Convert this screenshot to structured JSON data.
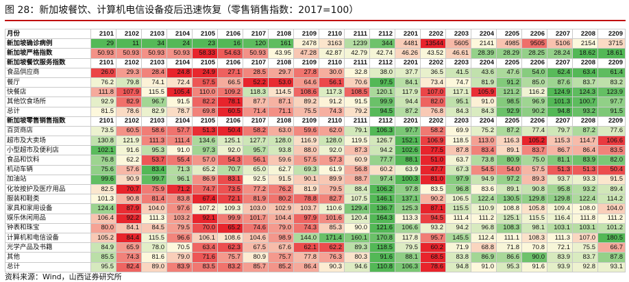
{
  "title": "图 28：新加坡餐饮、计算机电信设备疫后迅速恢复（零售销售指数：2017=100）",
  "source": "资料来源：Wind，山西证券研究所",
  "columns": [
    "月份",
    "2101",
    "2102",
    "2103",
    "2104",
    "2105",
    "2106",
    "2107",
    "2108",
    "2109",
    "2110",
    "2111",
    "2112",
    "2201",
    "2202",
    "2203",
    "2204",
    "2205",
    "2206",
    "2207",
    "2208",
    "2209"
  ],
  "rows": [
    {
      "type": "data",
      "label": "新加坡确诊病例",
      "bold": true,
      "values": [
        "29",
        "11",
        "34",
        "24",
        "23",
        "16",
        "120",
        "161",
        "2478",
        "3163",
        "1239",
        "344",
        "4481",
        "13544",
        "5605",
        "2141",
        "4985",
        "9505",
        "5106",
        "2154",
        "3715"
      ]
    },
    {
      "type": "data",
      "label": "新加坡严格指数",
      "bold": true,
      "values": [
        "50.93",
        "50.93",
        "50.93",
        "50.93",
        "58.33",
        "54.63",
        "50.93",
        "43.95",
        "47.28",
        "42.87",
        "42.79",
        "42.74",
        "46.26",
        "43.52",
        "46.61",
        "28.39",
        "28.29",
        "28.25",
        "28.24",
        "18.62",
        "18.61"
      ]
    },
    {
      "type": "header",
      "label": "新加坡餐饮服务指数",
      "values": [
        "2101",
        "2102",
        "2103",
        "2104",
        "2105",
        "2106",
        "2107",
        "2108",
        "2109",
        "2110",
        "2111",
        "2112",
        "2201",
        "2202",
        "2203",
        "2204",
        "2205",
        "2206",
        "2207",
        "2208",
        "2209"
      ]
    },
    {
      "type": "data",
      "label": "食品供应商",
      "values": [
        "26.0",
        "29.3",
        "28.4",
        "24.8",
        "24.9",
        "27.1",
        "28.5",
        "29.7",
        "27.8",
        "30.0",
        "32.8",
        "38.0",
        "37.7",
        "36.5",
        "41.5",
        "43.6",
        "47.6",
        "54.0",
        "62.4",
        "63.4",
        "61.4"
      ]
    },
    {
      "type": "data",
      "label": "餐厅",
      "values": [
        "76.2",
        "79.8",
        "74.1",
        "72.4",
        "57.5",
        "66.5",
        "52.2",
        "53.0",
        "64.6",
        "56.1",
        "70.6",
        "97.5",
        "84.1",
        "73.4",
        "74.7",
        "81.9",
        "91.2",
        "85.0",
        "87.6",
        "83.7",
        "83.2"
      ]
    },
    {
      "type": "data",
      "label": "快餐店",
      "values": [
        "111.8",
        "107.9",
        "115.5",
        "105.4",
        "110.0",
        "109.2",
        "118.3",
        "114.5",
        "108.6",
        "117.3",
        "108.5",
        "120.1",
        "117.9",
        "107.0",
        "117.1",
        "105.9",
        "121.2",
        "116.2",
        "124.9",
        "124.3",
        "123.9"
      ]
    },
    {
      "type": "data",
      "label": "其他饮食场所",
      "values": [
        "92.9",
        "82.9",
        "96.7",
        "91.5",
        "82.2",
        "78.1",
        "87.7",
        "87.1",
        "89.2",
        "91.2",
        "91.5",
        "99.9",
        "94.4",
        "82.0",
        "95.1",
        "91.0",
        "98.5",
        "96.9",
        "101.3",
        "100.7",
        "97.7"
      ]
    },
    {
      "type": "data",
      "label": "总计",
      "values": [
        "81.5",
        "78.6",
        "82.9",
        "78.7",
        "69.8",
        "60.5",
        "71.4",
        "71.1",
        "75.5",
        "74.3",
        "79.2",
        "94.5",
        "87.2",
        "76.8",
        "84.3",
        "84.3",
        "92.9",
        "90.2",
        "94.8",
        "93.2",
        "91.5"
      ]
    },
    {
      "type": "header",
      "label": "新加坡零售销售指数",
      "values": [
        "2101",
        "2102",
        "2103",
        "2104",
        "2105",
        "2106",
        "2107",
        "2108",
        "2109",
        "2110",
        "2111",
        "2112",
        "2201",
        "2202",
        "2203",
        "2204",
        "2205",
        "2206",
        "2207",
        "2208",
        "2209"
      ]
    },
    {
      "type": "data",
      "label": "百货商店",
      "values": [
        "73.5",
        "60.5",
        "58.6",
        "57.7",
        "51.3",
        "50.4",
        "58.2",
        "63.0",
        "59.6",
        "62.0",
        "79.1",
        "106.3",
        "97.7",
        "58.2",
        "69.9",
        "75.2",
        "87.2",
        "77.4",
        "79.7",
        "87.2",
        "77.6"
      ]
    },
    {
      "type": "data",
      "label": "超市及大卖场",
      "values": [
        "130.8",
        "121.9",
        "111.3",
        "111.4",
        "134.6",
        "125.1",
        "127.7",
        "128.0",
        "116.9",
        "128.0",
        "119.5",
        "126.7",
        "152.1",
        "106.9",
        "118.5",
        "113.0",
        "116.3",
        "105.2",
        "115.3",
        "114.7",
        "106.6"
      ]
    },
    {
      "type": "data",
      "label": "小型超市及便利店",
      "values": [
        "102.1",
        "91.6",
        "95.3",
        "91.0",
        "97.3",
        "92.0",
        "95.7",
        "93.8",
        "88.0",
        "92.0",
        "87.3",
        "94.2",
        "102.6",
        "77.5",
        "87.8",
        "83.4",
        "89.1",
        "83.7",
        "86.7",
        "86.4",
        "83.5"
      ]
    },
    {
      "type": "data",
      "label": "食品和饮料",
      "values": [
        "76.8",
        "62.2",
        "53.7",
        "55.4",
        "57.0",
        "54.3",
        "56.1",
        "59.6",
        "57.5",
        "57.3",
        "60.9",
        "77.7",
        "88.1",
        "51.0",
        "63.7",
        "73.8",
        "80.9",
        "75.0",
        "81.1",
        "83.9",
        "82.0"
      ]
    },
    {
      "type": "data",
      "label": "机动车辆",
      "values": [
        "75.6",
        "57.6",
        "83.4",
        "71.3",
        "65.2",
        "70.7",
        "65.0",
        "62.7",
        "69.3",
        "61.9",
        "56.8",
        "60.2",
        "63.9",
        "47.7",
        "67.3",
        "54.5",
        "54.0",
        "57.5",
        "51.3",
        "51.3",
        "50.4"
      ]
    },
    {
      "type": "data",
      "label": "加油站",
      "values": [
        "99.6",
        "90.9",
        "99.7",
        "96.1",
        "86.9",
        "83.1",
        "92.5",
        "91.5",
        "90.1",
        "89.9",
        "88.7",
        "97.4",
        "100.3",
        "81.0",
        "97.9",
        "94.9",
        "97.2",
        "89.3",
        "93.7",
        "93.3",
        "91.5"
      ]
    },
    {
      "type": "data",
      "label": "化妆按护及医疗用品",
      "values": [
        "82.5",
        "70.7",
        "75.9",
        "71.2",
        "74.7",
        "73.5",
        "77.2",
        "76.2",
        "81.9",
        "79.5",
        "88.4",
        "106.2",
        "97.8",
        "83.5",
        "96.8",
        "83.6",
        "89.1",
        "90.8",
        "95.8",
        "93.2",
        "89.4"
      ]
    },
    {
      "type": "data",
      "label": "服装和鞋类",
      "values": [
        "101.3",
        "90.8",
        "81.4",
        "83.8",
        "67.4",
        "72.1",
        "81.9",
        "80.2",
        "78.8",
        "82.7",
        "107.5",
        "146.1",
        "137.1",
        "90.2",
        "106.5",
        "122.4",
        "130.5",
        "129.8",
        "129.8",
        "122.4",
        "114.2"
      ]
    },
    {
      "type": "data",
      "label": "家具和家用设备",
      "values": [
        "124.4",
        "87.9",
        "104.0",
        "97.6",
        "107.2",
        "109.3",
        "103.0",
        "102.9",
        "103.7",
        "110.6",
        "129.4",
        "136.7",
        "125.3",
        "87.1",
        "115.5",
        "110.9",
        "108.8",
        "105.8",
        "109.4",
        "108.0",
        "104.0"
      ]
    },
    {
      "type": "data",
      "label": "娱乐休闲用品",
      "values": [
        "106.4",
        "92.2",
        "111.3",
        "103.2",
        "92.1",
        "99.9",
        "101.7",
        "104.4",
        "97.9",
        "101.6",
        "120.4",
        "164.3",
        "113.3",
        "94.5",
        "111.4",
        "111.2",
        "125.1",
        "115.5",
        "116.4",
        "111.8",
        "111.2"
      ]
    },
    {
      "type": "data",
      "label": "钟表和珠宝",
      "values": [
        "80.0",
        "84.1",
        "84.5",
        "79.5",
        "70.0",
        "65.2",
        "74.6",
        "79.0",
        "74.3",
        "85.3",
        "90.0",
        "121.6",
        "106.6",
        "93.2",
        "94.2",
        "96.8",
        "108.3",
        "98.1",
        "103.1",
        "103.1",
        "101.2"
      ]
    },
    {
      "type": "data",
      "label": "计算机和电信设备",
      "values": [
        "105.2",
        "84.4",
        "115.5",
        "96.6",
        "106.1",
        "108.6",
        "104.6",
        "98.9",
        "144.0",
        "171.4",
        "160.1",
        "170.8",
        "117.8",
        "95.7",
        "145.5",
        "112.4",
        "111.1",
        "108.3",
        "111.3",
        "107.0",
        "180.5"
      ]
    },
    {
      "type": "data",
      "label": "光学产品及书籍",
      "values": [
        "84.9",
        "65.9",
        "78.0",
        "70.5",
        "63.4",
        "62.3",
        "67.5",
        "67.6",
        "62.1",
        "62.2",
        "89.3",
        "118.5",
        "79.5",
        "60.2",
        "71.9",
        "68.8",
        "71.8",
        "70.8",
        "72.1",
        "75.5",
        "66.7"
      ]
    },
    {
      "type": "data",
      "label": "其他",
      "values": [
        "85.5",
        "74.3",
        "81.6",
        "79.0",
        "71.6",
        "75.7",
        "80.9",
        "75.7",
        "77.8",
        "76.3",
        "80.3",
        "91.6",
        "88.1",
        "68.5",
        "83.8",
        "86.9",
        "86.6",
        "90.0",
        "83.9",
        "83.7",
        "87.8"
      ]
    },
    {
      "type": "data",
      "label": "总计",
      "values": [
        "95.5",
        "82.4",
        "89.0",
        "83.9",
        "83.5",
        "83.2",
        "85.7",
        "85.2",
        "86.4",
        "90.3",
        "94.6",
        "110.8",
        "106.3",
        "78.6",
        "94.8",
        "91.0",
        "95.3",
        "91.6",
        "93.9",
        "92.8",
        "93.1"
      ]
    }
  ],
  "colors": {
    "red": "#e8242c",
    "yellow": "#fdf8dc",
    "green": "#53b856",
    "border": "#c9c9c9",
    "title_rule": "#c00000"
  }
}
